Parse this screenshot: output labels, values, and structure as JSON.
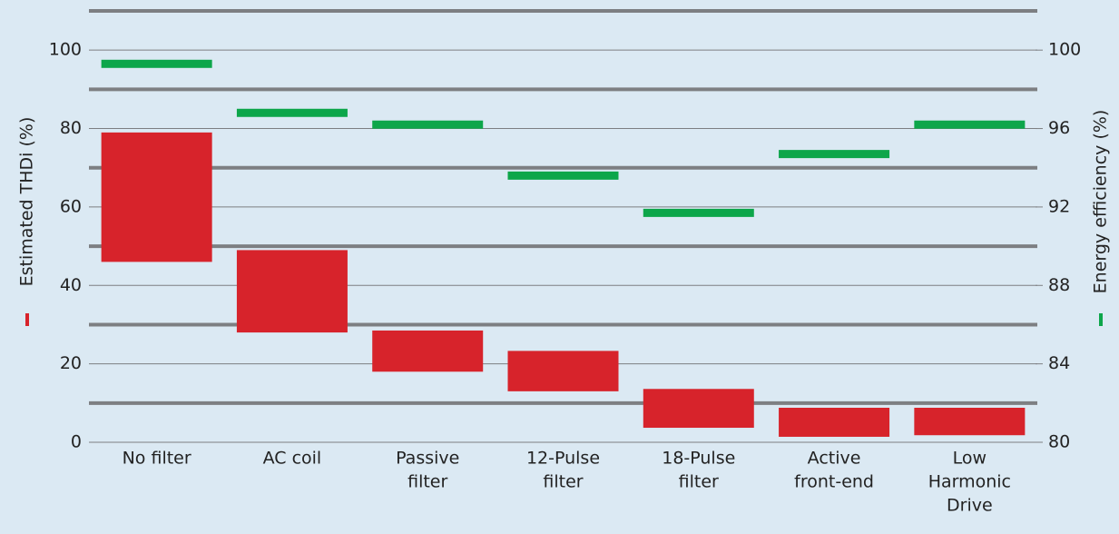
{
  "chart_data": {
    "type": "floating-bar",
    "y_label": "Estimated THDi (%)",
    "y2_label": "Energy efficiency (%)",
    "categories": [
      [
        "No filter"
      ],
      [
        "AC coil"
      ],
      [
        "Passive",
        "filter"
      ],
      [
        "12-Pulse",
        "filter"
      ],
      [
        "18-Pulse",
        "filter"
      ],
      [
        "Active",
        "front-end"
      ],
      [
        "Low",
        "Harmonic",
        "Drive"
      ]
    ],
    "ranges": {
      "color": "#d7232b",
      "low": [
        46,
        28,
        18,
        13,
        3.7,
        1.4,
        1.8
      ],
      "high": [
        79,
        49,
        28.5,
        23.3,
        13.6,
        8.8,
        8.8
      ]
    },
    "efficiency": {
      "color": "#0da64a",
      "axis": "y2",
      "values": [
        99.3,
        96.8,
        96.2,
        93.6,
        91.7,
        94.7,
        96.2
      ]
    },
    "ylim": [
      0,
      110
    ],
    "yticks": [
      0,
      20,
      40,
      60,
      80,
      100
    ],
    "y2lim": [
      80,
      102
    ],
    "y2ticks": [
      80,
      84,
      88,
      92,
      96,
      100
    ],
    "ygrid": [
      10,
      30,
      50,
      70,
      90,
      110
    ],
    "grid": true
  }
}
